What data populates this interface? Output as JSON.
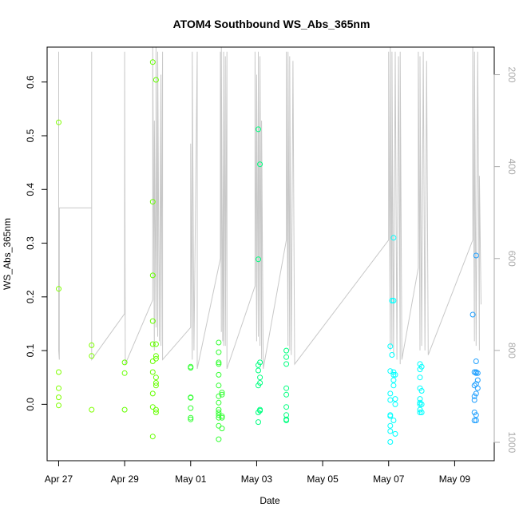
{
  "chart_data": {
    "type": "scatter",
    "title": "ATOM4 Southbound WS_Abs_365nm",
    "xlabel": "Date",
    "ylabel": "WS_Abs_365nm",
    "x_ticks": [
      "Apr 27",
      "Apr 29",
      "May 01",
      "May 03",
      "May 05",
      "May 07",
      "May 09"
    ],
    "x_tick_days": [
      0,
      2,
      4,
      6,
      8,
      10,
      12
    ],
    "xlim_days": [
      -0.35,
      13.2
    ],
    "ylim": [
      -0.105,
      0.665
    ],
    "y_ticks": [
      0.0,
      0.1,
      0.2,
      0.3,
      0.4,
      0.5,
      0.6
    ],
    "right_axis": {
      "ticks": [
        200,
        400,
        600,
        800,
        1000
      ],
      "ylim": [
        1040,
        140
      ],
      "color": "#aaaaaa",
      "trace_color": "#c8c8c8"
    },
    "series": [
      {
        "color": "#7fff00",
        "points": [
          [
            0.0,
            0.525
          ],
          [
            0.0,
            0.215
          ],
          [
            0.0,
            0.06
          ],
          [
            0.0,
            0.03
          ],
          [
            0.0,
            0.013
          ],
          [
            0.0,
            -0.002
          ],
          [
            1.0,
            0.11
          ],
          [
            1.0,
            0.09
          ],
          [
            1.0,
            -0.01
          ]
        ]
      },
      {
        "color": "#66ff00",
        "points": [
          [
            2.0,
            0.078
          ],
          [
            2.0,
            0.058
          ],
          [
            2.0,
            -0.01
          ],
          [
            2.85,
            0.637
          ],
          [
            2.85,
            0.377
          ],
          [
            2.85,
            0.24
          ],
          [
            2.85,
            0.155
          ],
          [
            2.85,
            0.112
          ],
          [
            2.85,
            0.08
          ],
          [
            2.85,
            0.06
          ],
          [
            2.85,
            0.02
          ],
          [
            2.85,
            -0.005
          ],
          [
            2.85,
            -0.06
          ],
          [
            2.95,
            0.604
          ],
          [
            2.95,
            0.112
          ],
          [
            2.95,
            0.09
          ],
          [
            2.95,
            0.085
          ],
          [
            2.95,
            0.05
          ],
          [
            2.95,
            0.04
          ],
          [
            2.95,
            0.035
          ],
          [
            2.95,
            -0.01
          ],
          [
            2.95,
            -0.015
          ]
        ]
      },
      {
        "color": "#33ff33",
        "points": [
          [
            4.0,
            0.07
          ],
          [
            4.0,
            0.068
          ],
          [
            4.0,
            0.013
          ],
          [
            4.0,
            0.012
          ],
          [
            4.0,
            -0.007
          ],
          [
            4.0,
            -0.025
          ],
          [
            4.0,
            -0.028
          ],
          [
            4.85,
            0.115
          ],
          [
            4.85,
            0.097
          ],
          [
            4.85,
            0.078
          ],
          [
            4.85,
            0.075
          ],
          [
            4.85,
            0.055
          ],
          [
            4.85,
            0.035
          ],
          [
            4.85,
            0.015
          ],
          [
            4.85,
            0.003
          ],
          [
            4.85,
            -0.01
          ],
          [
            4.85,
            -0.015
          ],
          [
            4.85,
            -0.02
          ],
          [
            4.85,
            -0.025
          ],
          [
            4.85,
            -0.04
          ],
          [
            4.85,
            -0.065
          ],
          [
            4.95,
            0.022
          ],
          [
            4.95,
            0.018
          ],
          [
            4.95,
            -0.022
          ],
          [
            4.95,
            -0.025
          ],
          [
            4.95,
            -0.045
          ]
        ]
      },
      {
        "color": "#00ff80",
        "points": [
          [
            6.05,
            0.512
          ],
          [
            6.05,
            0.27
          ],
          [
            6.05,
            0.073
          ],
          [
            6.05,
            0.063
          ],
          [
            6.05,
            0.035
          ],
          [
            6.05,
            -0.015
          ],
          [
            6.05,
            -0.033
          ],
          [
            6.1,
            0.447
          ],
          [
            6.1,
            0.078
          ],
          [
            6.1,
            0.05
          ],
          [
            6.1,
            0.04
          ],
          [
            6.1,
            -0.01
          ],
          [
            6.1,
            -0.012
          ],
          [
            6.9,
            0.1
          ],
          [
            6.9,
            0.088
          ],
          [
            6.9,
            0.075
          ],
          [
            6.9,
            0.03
          ],
          [
            6.9,
            0.018
          ],
          [
            6.9,
            -0.005
          ],
          [
            6.9,
            -0.02
          ],
          [
            6.9,
            -0.028
          ],
          [
            6.9,
            -0.03
          ]
        ]
      },
      {
        "color": "#00ffff",
        "points": [
          [
            10.05,
            0.108
          ],
          [
            10.05,
            0.062
          ],
          [
            10.05,
            0.02
          ],
          [
            10.05,
            0.008
          ],
          [
            10.05,
            -0.02
          ],
          [
            10.05,
            -0.022
          ],
          [
            10.05,
            -0.04
          ],
          [
            10.05,
            -0.05
          ],
          [
            10.05,
            -0.07
          ],
          [
            10.1,
            0.193
          ],
          [
            10.1,
            0.092
          ],
          [
            10.15,
            0.31
          ],
          [
            10.15,
            0.193
          ],
          [
            10.15,
            0.06
          ],
          [
            10.15,
            0.055
          ],
          [
            10.15,
            0.045
          ],
          [
            10.15,
            0.035
          ],
          [
            10.15,
            -0.03
          ],
          [
            10.2,
            0.055
          ],
          [
            10.2,
            0.01
          ],
          [
            10.2,
            0.0
          ],
          [
            10.2,
            -0.055
          ],
          [
            10.95,
            0.075
          ],
          [
            10.95,
            0.065
          ],
          [
            10.95,
            0.05
          ],
          [
            10.95,
            0.03
          ],
          [
            10.95,
            0.01
          ],
          [
            10.95,
            0.003
          ],
          [
            10.95,
            0.0
          ],
          [
            10.95,
            -0.01
          ],
          [
            10.95,
            -0.015
          ],
          [
            11.0,
            0.07
          ],
          [
            11.0,
            0.025
          ],
          [
            11.0,
            0.0
          ],
          [
            11.0,
            -0.015
          ]
        ]
      },
      {
        "color": "#1e9fff",
        "points": [
          [
            12.55,
            0.167
          ],
          [
            12.6,
            0.06
          ],
          [
            12.6,
            0.035
          ],
          [
            12.6,
            0.015
          ],
          [
            12.6,
            0.008
          ],
          [
            12.6,
            -0.015
          ],
          [
            12.6,
            -0.03
          ],
          [
            12.65,
            0.277
          ],
          [
            12.65,
            0.08
          ],
          [
            12.65,
            0.06
          ],
          [
            12.65,
            0.058
          ],
          [
            12.65,
            0.038
          ],
          [
            12.65,
            0.02
          ],
          [
            12.65,
            -0.02
          ],
          [
            12.65,
            -0.03
          ],
          [
            12.7,
            0.058
          ],
          [
            12.7,
            0.045
          ],
          [
            12.7,
            0.03
          ]
        ]
      }
    ],
    "altitude_trace": [
      [
        0.0,
        150
      ],
      [
        0.0,
        800
      ],
      [
        0.02,
        820
      ],
      [
        0.02,
        490
      ],
      [
        1.0,
        490
      ],
      [
        1.0,
        150
      ],
      [
        1.0,
        820
      ],
      [
        2.0,
        720
      ],
      [
        2.0,
        150
      ],
      [
        2.02,
        830
      ],
      [
        2.85,
        690
      ],
      [
        2.85,
        140
      ],
      [
        2.9,
        800
      ],
      [
        2.9,
        300
      ],
      [
        2.95,
        750
      ],
      [
        2.95,
        140
      ],
      [
        3.0,
        770
      ],
      [
        3.0,
        150
      ],
      [
        3.05,
        780
      ],
      [
        3.1,
        200
      ],
      [
        3.1,
        790
      ],
      [
        3.15,
        150
      ],
      [
        3.15,
        820
      ],
      [
        4.0,
        750
      ],
      [
        4.0,
        350
      ],
      [
        4.05,
        820
      ],
      [
        4.05,
        150
      ],
      [
        4.1,
        800
      ],
      [
        4.2,
        150
      ],
      [
        4.2,
        840
      ],
      [
        4.9,
        600
      ],
      [
        4.9,
        150
      ],
      [
        4.93,
        760
      ],
      [
        4.93,
        140
      ],
      [
        4.97,
        780
      ],
      [
        5.0,
        150
      ],
      [
        5.0,
        790
      ],
      [
        5.05,
        160
      ],
      [
        5.05,
        790
      ],
      [
        5.1,
        150
      ],
      [
        5.1,
        840
      ],
      [
        5.95,
        660
      ],
      [
        5.95,
        150
      ],
      [
        6.0,
        780
      ],
      [
        6.0,
        200
      ],
      [
        6.05,
        770
      ],
      [
        6.05,
        150
      ],
      [
        6.1,
        790
      ],
      [
        6.1,
        160
      ],
      [
        6.15,
        820
      ],
      [
        6.15,
        300
      ],
      [
        6.2,
        840
      ],
      [
        6.9,
        560
      ],
      [
        6.9,
        150
      ],
      [
        6.95,
        790
      ],
      [
        6.95,
        150
      ],
      [
        7.0,
        800
      ],
      [
        7.0,
        160
      ],
      [
        7.05,
        810
      ],
      [
        7.1,
        170
      ],
      [
        7.15,
        830
      ],
      [
        10.0,
        560
      ],
      [
        10.0,
        150
      ],
      [
        10.05,
        800
      ],
      [
        10.05,
        140
      ],
      [
        10.1,
        790
      ],
      [
        10.1,
        150
      ],
      [
        10.15,
        810
      ],
      [
        10.2,
        150
      ],
      [
        10.25,
        820
      ],
      [
        10.3,
        160
      ],
      [
        10.35,
        830
      ],
      [
        10.35,
        150
      ],
      [
        10.4,
        820
      ],
      [
        10.9,
        620
      ],
      [
        10.9,
        150
      ],
      [
        10.95,
        800
      ],
      [
        10.95,
        160
      ],
      [
        11.0,
        790
      ],
      [
        11.05,
        150
      ],
      [
        11.1,
        800
      ],
      [
        11.15,
        170
      ],
      [
        11.2,
        810
      ],
      [
        12.55,
        560
      ],
      [
        12.55,
        140
      ],
      [
        12.6,
        780
      ],
      [
        12.6,
        150
      ],
      [
        12.65,
        790
      ],
      [
        12.7,
        150
      ],
      [
        12.75,
        800
      ],
      [
        12.75,
        420
      ],
      [
        12.8,
        700
      ]
    ]
  }
}
